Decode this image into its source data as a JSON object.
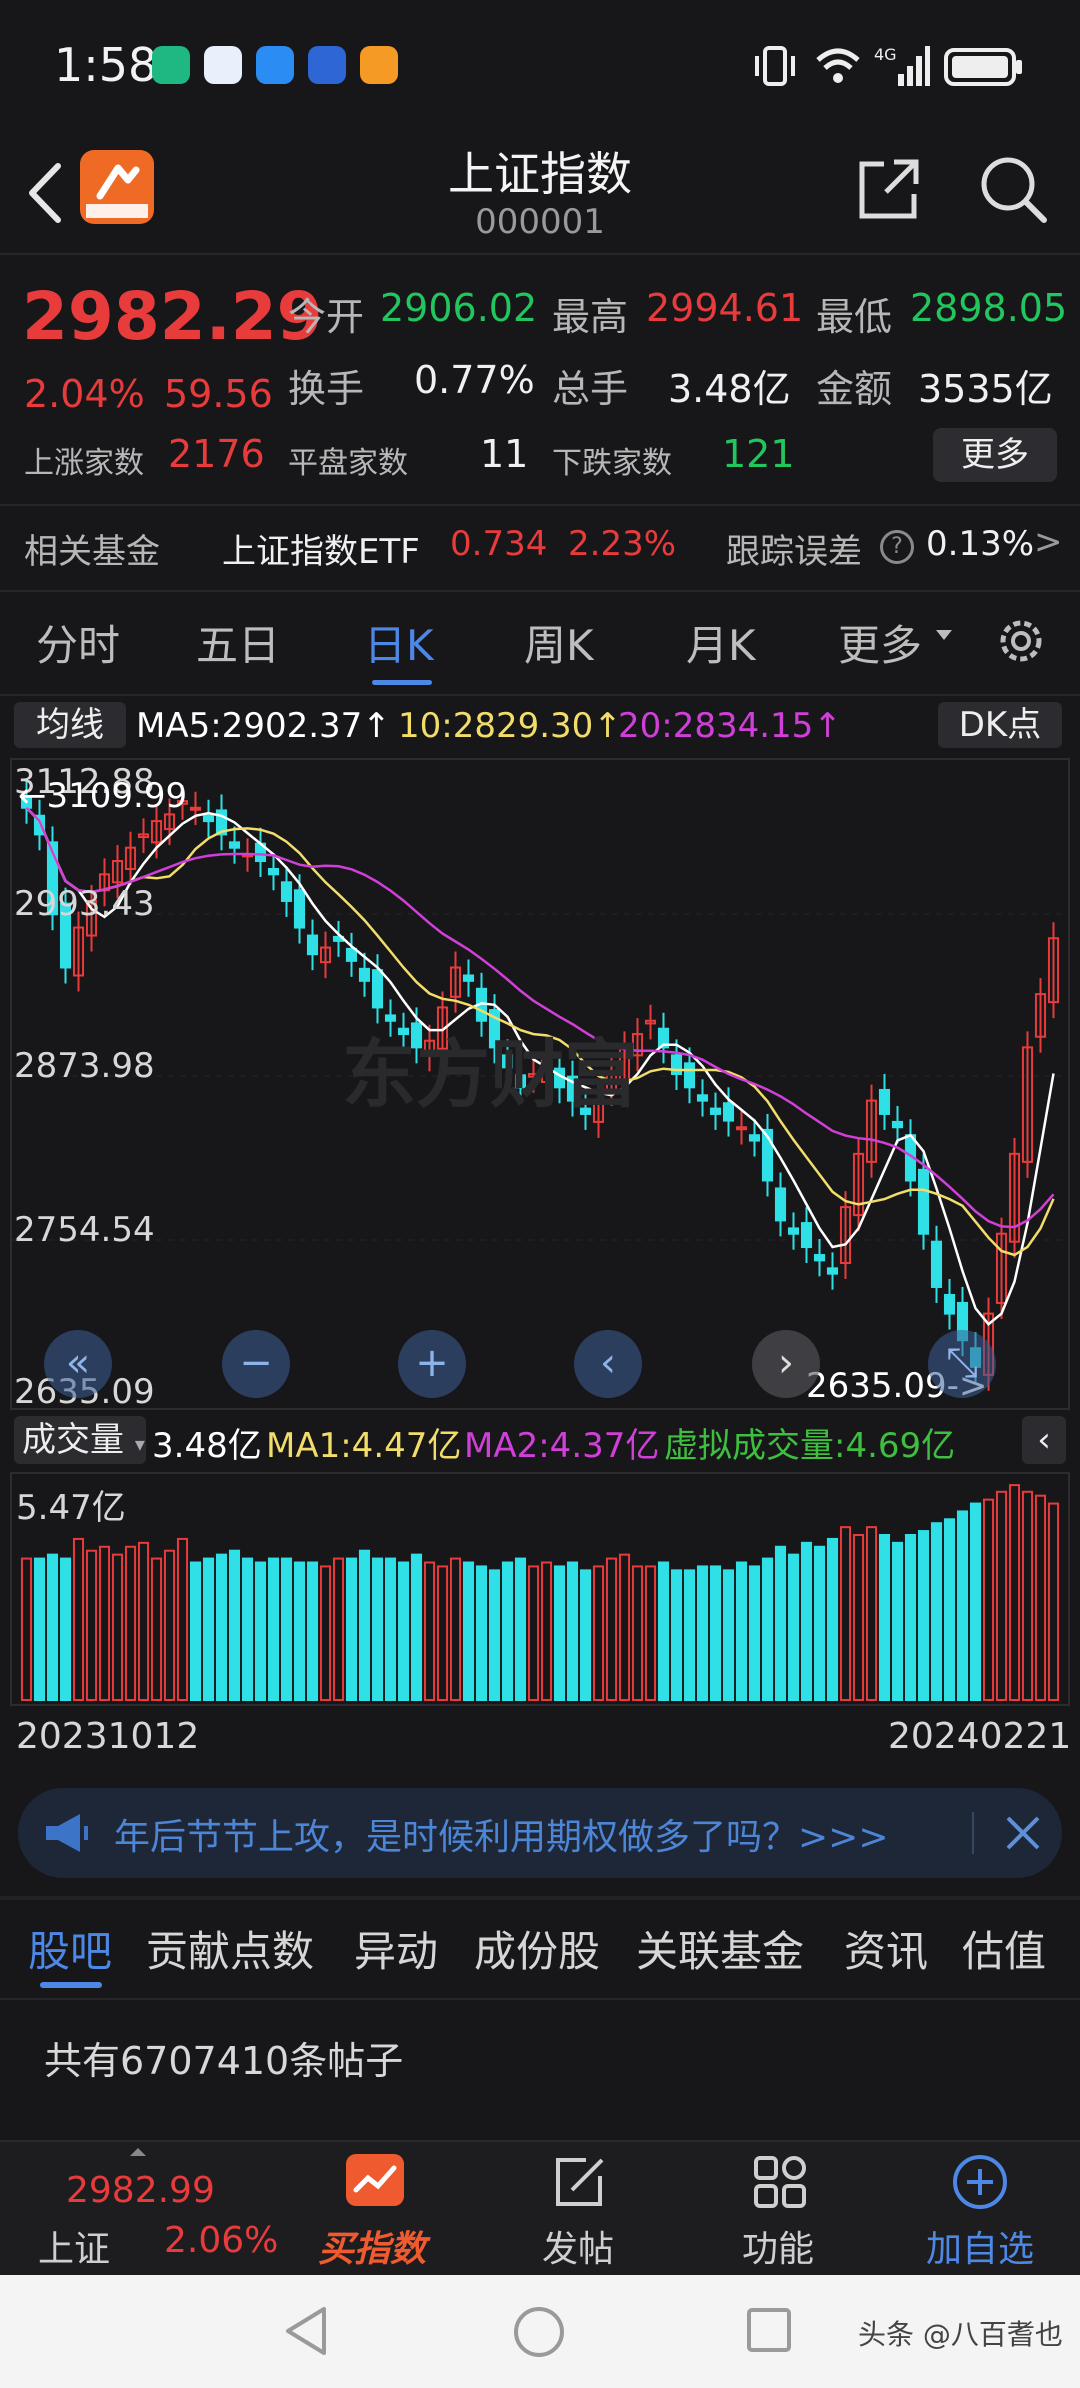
{
  "status_bar": {
    "time": "1:58"
  },
  "header": {
    "title": "上证指数",
    "code": "000001"
  },
  "quote": {
    "price": "2982.29",
    "change_pct": "2.04%",
    "change": "59.56",
    "open_label": "今开",
    "open": "2906.02",
    "high_label": "最高",
    "high": "2994.61",
    "low_label": "最低",
    "low": "2898.05",
    "turnover_label": "换手",
    "turnover": "0.77%",
    "volume_label": "总手",
    "volume": "3.48亿",
    "amount_label": "金额",
    "amount": "3535亿",
    "up_label": "上涨家数",
    "up": "2176",
    "flat_label": "平盘家数",
    "flat": "11",
    "down_label": "下跌家数",
    "down": "121",
    "more_label": "更多"
  },
  "fund_row": {
    "label": "相关基金",
    "name": "上证指数ETF",
    "price": "0.734",
    "pct": "2.23%",
    "track_label": "跟踪误差",
    "track_value": "0.13%",
    "arrow": ">"
  },
  "tabs": [
    "分时",
    "五日",
    "日K",
    "周K",
    "月K",
    "更多"
  ],
  "chart": {
    "indicator_btn": "均线",
    "ma5": "MA5:2902.37↑",
    "ma10": "10:2829.30↑",
    "ma20": "20:2834.15↑",
    "dk_btn": "DK点",
    "y_ticks": [
      "3112.88",
      "2993.43",
      "2873.98",
      "2754.54",
      "2635.09"
    ],
    "high_marker": "←3109.99",
    "low_marker": "2635.09->",
    "watermark": "东方财富",
    "volume_btn": "成交量",
    "vol_value": "3.48亿",
    "vol_ma1": "MA1:4.47亿",
    "vol_ma2": "MA2:4.37亿",
    "vol_virtual": "虚拟成交量:4.69亿",
    "vol_max": "5.47亿",
    "date_start": "20231012",
    "date_end": "20240221",
    "colors": {
      "up": "#e83b3b",
      "down": "#2fe0e6",
      "ma5": "#ffffff",
      "ma10": "#f2dd6a",
      "ma20": "#d040d8"
    }
  },
  "banner": {
    "text": "年后节节上攻，是时候利用期权做多了吗？>>>"
  },
  "bottom_tabs": [
    "股吧",
    "贡献点数",
    "异动",
    "成份股",
    "关联基金",
    "资讯",
    "估值"
  ],
  "post_count": "共有6707410条帖子",
  "nav": {
    "index_price": "2982.99",
    "index_name": "上证",
    "index_pct": "2.06%",
    "buy_label": "买指数",
    "post_label": "发帖",
    "func_label": "功能",
    "watch_label": "加自选"
  },
  "watermark_footer": "头条 @八百耆也"
}
